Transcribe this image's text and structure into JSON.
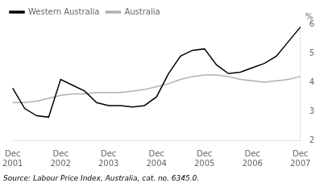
{
  "chart_data": {
    "type": "line",
    "categories": [
      "Dec\n2001",
      null,
      null,
      null,
      "Dec\n2002",
      null,
      null,
      null,
      "Dec\n2003",
      null,
      null,
      null,
      "Dec\n2004",
      null,
      null,
      null,
      "Dec\n2005",
      null,
      null,
      null,
      "Dec\n2006",
      null,
      null,
      null,
      "Dec\n2007"
    ],
    "series": [
      {
        "name": "Western Australia",
        "color": "#000000",
        "values": [
          3.8,
          3.1,
          2.85,
          2.8,
          4.1,
          3.9,
          3.7,
          3.3,
          3.2,
          3.2,
          3.15,
          3.2,
          3.5,
          4.3,
          4.9,
          5.1,
          5.15,
          4.6,
          4.3,
          4.35,
          4.5,
          4.65,
          4.9,
          5.4,
          5.9
        ]
      },
      {
        "name": "Australia",
        "color": "#b0b0b0",
        "values": [
          3.3,
          3.3,
          3.35,
          3.45,
          3.55,
          3.6,
          3.6,
          3.65,
          3.65,
          3.65,
          3.7,
          3.75,
          3.85,
          3.95,
          4.1,
          4.2,
          4.25,
          4.25,
          4.2,
          4.1,
          4.05,
          4.0,
          4.05,
          4.1,
          4.2
        ]
      }
    ],
    "y_label": "%",
    "annotations": [
      "Source: Labour Price Index, Australia, cat. no. 6345.0."
    ],
    "ylim": [
      2,
      6
    ],
    "yticks": [
      2,
      3,
      4,
      5,
      6
    ],
    "grid": false,
    "legend": "upper left"
  }
}
